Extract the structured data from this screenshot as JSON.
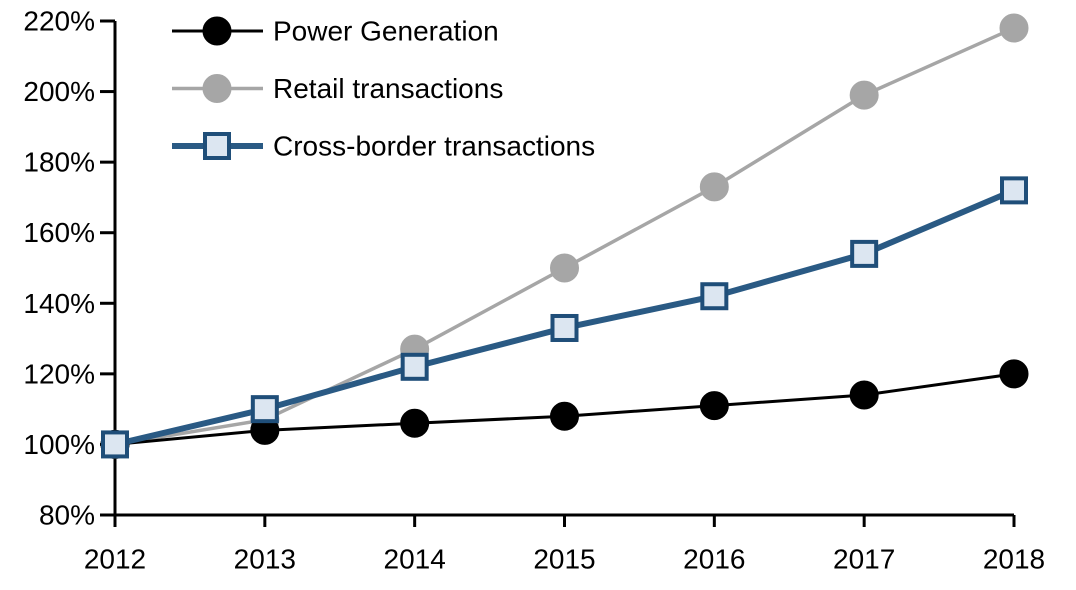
{
  "chart_data": {
    "type": "line",
    "title": "",
    "xlabel": "",
    "ylabel": "",
    "categories": [
      "2012",
      "2013",
      "2014",
      "2015",
      "2016",
      "2017",
      "2018"
    ],
    "series": [
      {
        "name": "Power Generation",
        "values": [
          100,
          104,
          106,
          108,
          111,
          114,
          120
        ],
        "color": "#000000",
        "line_width": 3,
        "marker": "circle",
        "marker_fill": "#000000",
        "marker_stroke": "#000000"
      },
      {
        "name": "Retail transactions",
        "values": [
          100,
          107,
          127,
          150,
          173,
          199,
          218
        ],
        "color": "#A6A6A6",
        "line_width": 3.5,
        "marker": "circle",
        "marker_fill": "#A6A6A6",
        "marker_stroke": "#A6A6A6"
      },
      {
        "name": "Cross-border transactions",
        "values": [
          100,
          110,
          122,
          133,
          142,
          154,
          172
        ],
        "color": "#2A5A84",
        "line_width": 6,
        "marker": "square",
        "marker_fill": "#DCE6F1",
        "marker_stroke": "#1F4E79"
      }
    ],
    "ylim": [
      80,
      220
    ],
    "ytick_step": 20,
    "ytick_labels": [
      "80%",
      "100%",
      "120%",
      "140%",
      "160%",
      "180%",
      "200%",
      "220%"
    ],
    "ytick_format": "percent",
    "grid": false,
    "axis_color": "#000000",
    "legend_position": "top-left-inside"
  }
}
